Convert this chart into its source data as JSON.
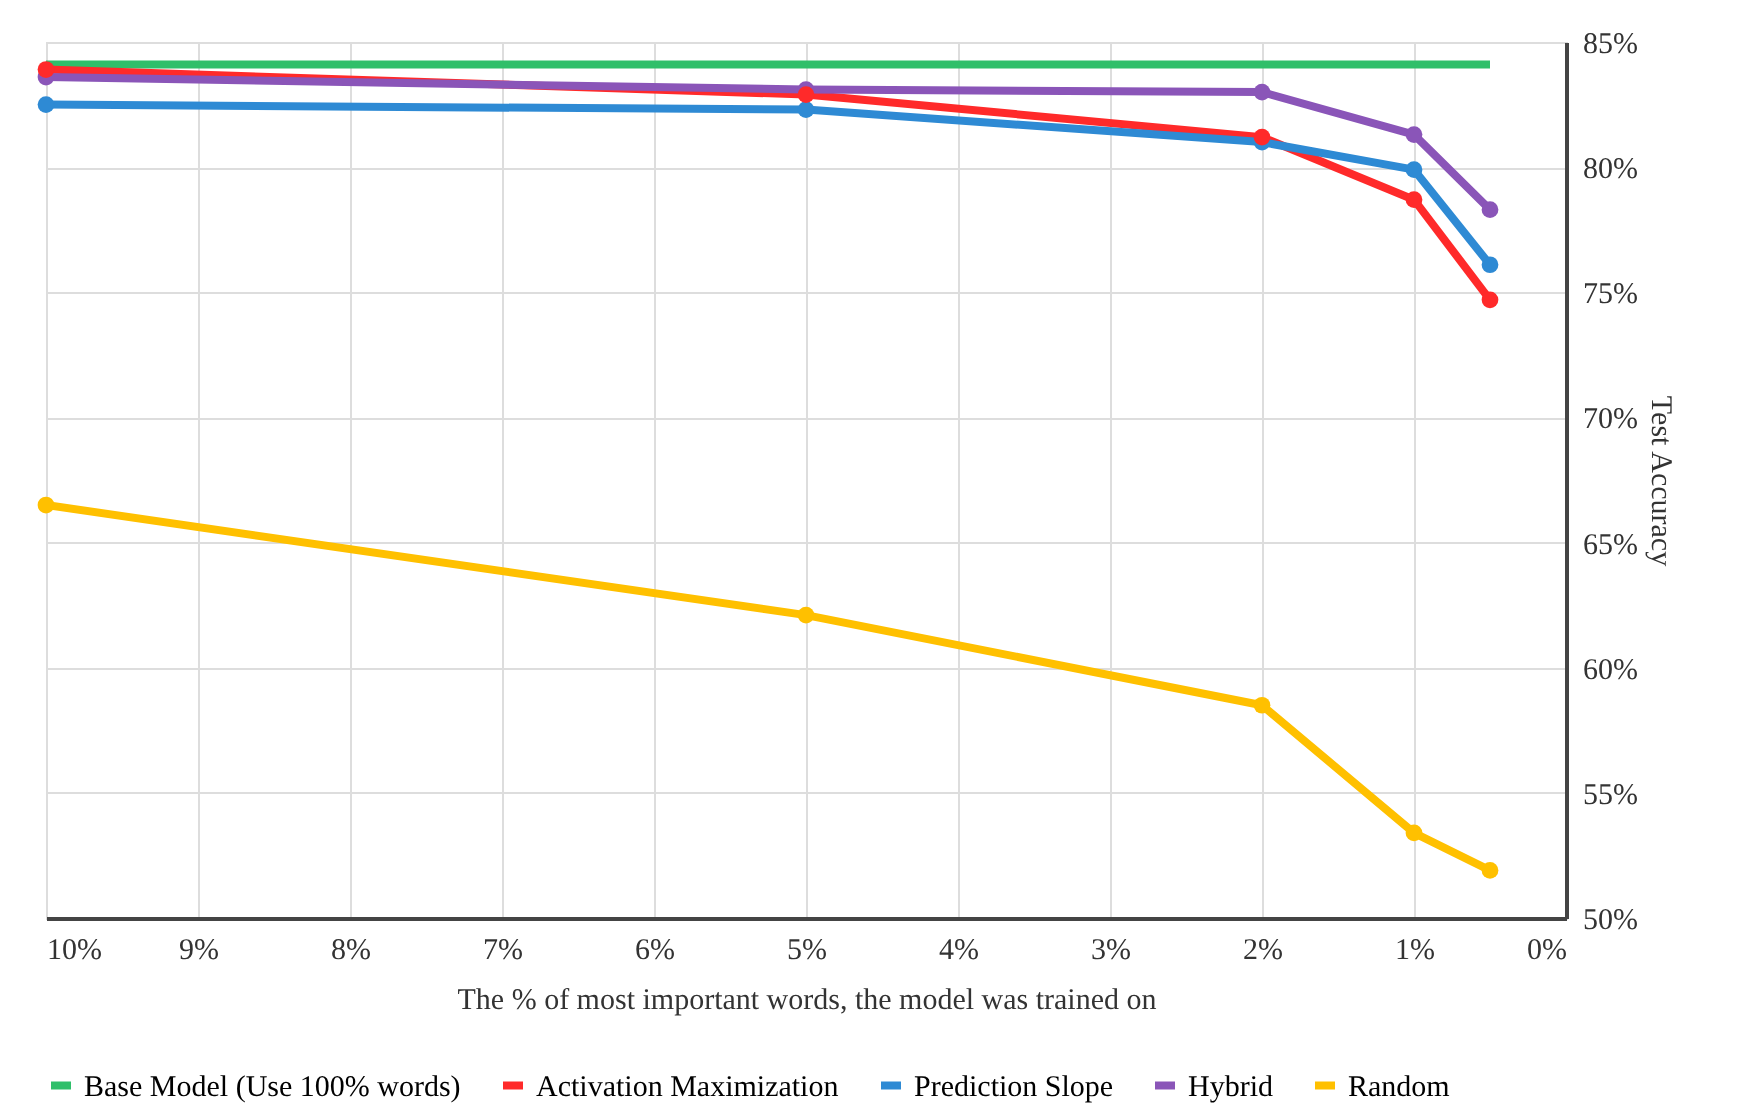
{
  "chart_data": {
    "type": "line",
    "xlabel": "The % of most important words, the model was trained on",
    "ylabel": "Test Accuracy",
    "x": [
      10,
      5,
      2,
      1,
      0.5
    ],
    "series": [
      {
        "name": "Base Model (Use 100% words)",
        "color": "#2fbf6a",
        "values": [
          84.1,
          84.1,
          84.1,
          84.1,
          84.1
        ],
        "marker": "none"
      },
      {
        "name": "Activation Maximization",
        "color": "#ff2a2a",
        "values": [
          83.9,
          82.9,
          81.2,
          78.7,
          74.7
        ],
        "marker": "circle"
      },
      {
        "name": "Prediction Slope",
        "color": "#2e8ad4",
        "values": [
          82.5,
          82.3,
          81.0,
          79.9,
          76.1
        ],
        "marker": "circle"
      },
      {
        "name": "Hybrid",
        "color": "#8a55b8",
        "values": [
          83.6,
          83.1,
          83.0,
          81.3,
          78.3
        ],
        "marker": "circle"
      },
      {
        "name": "Random",
        "color": "#ffc000",
        "values": [
          66.5,
          62.1,
          58.5,
          53.4,
          51.9
        ],
        "marker": "circle"
      }
    ],
    "xlim": [
      10,
      0
    ],
    "xticks": [
      {
        "value": 10,
        "label": "10%"
      },
      {
        "value": 9,
        "label": "9%"
      },
      {
        "value": 8,
        "label": "8%"
      },
      {
        "value": 7,
        "label": "7%"
      },
      {
        "value": 6,
        "label": "6%"
      },
      {
        "value": 5,
        "label": "5%"
      },
      {
        "value": 4,
        "label": "4%"
      },
      {
        "value": 3,
        "label": "3%"
      },
      {
        "value": 2,
        "label": "2%"
      },
      {
        "value": 1,
        "label": "1%"
      },
      {
        "value": 0,
        "label": "0%"
      }
    ],
    "ylim": [
      50,
      85
    ],
    "yticks": [
      {
        "value": 50,
        "label": "50%"
      },
      {
        "value": 55,
        "label": "55%"
      },
      {
        "value": 60,
        "label": "60%"
      },
      {
        "value": 65,
        "label": "65%"
      },
      {
        "value": 70,
        "label": "70%"
      },
      {
        "value": 75,
        "label": "75%"
      },
      {
        "value": 80,
        "label": "80%"
      },
      {
        "value": 85,
        "label": "85%"
      }
    ],
    "grid": true,
    "legend": "bottom",
    "line_style": "solid"
  }
}
